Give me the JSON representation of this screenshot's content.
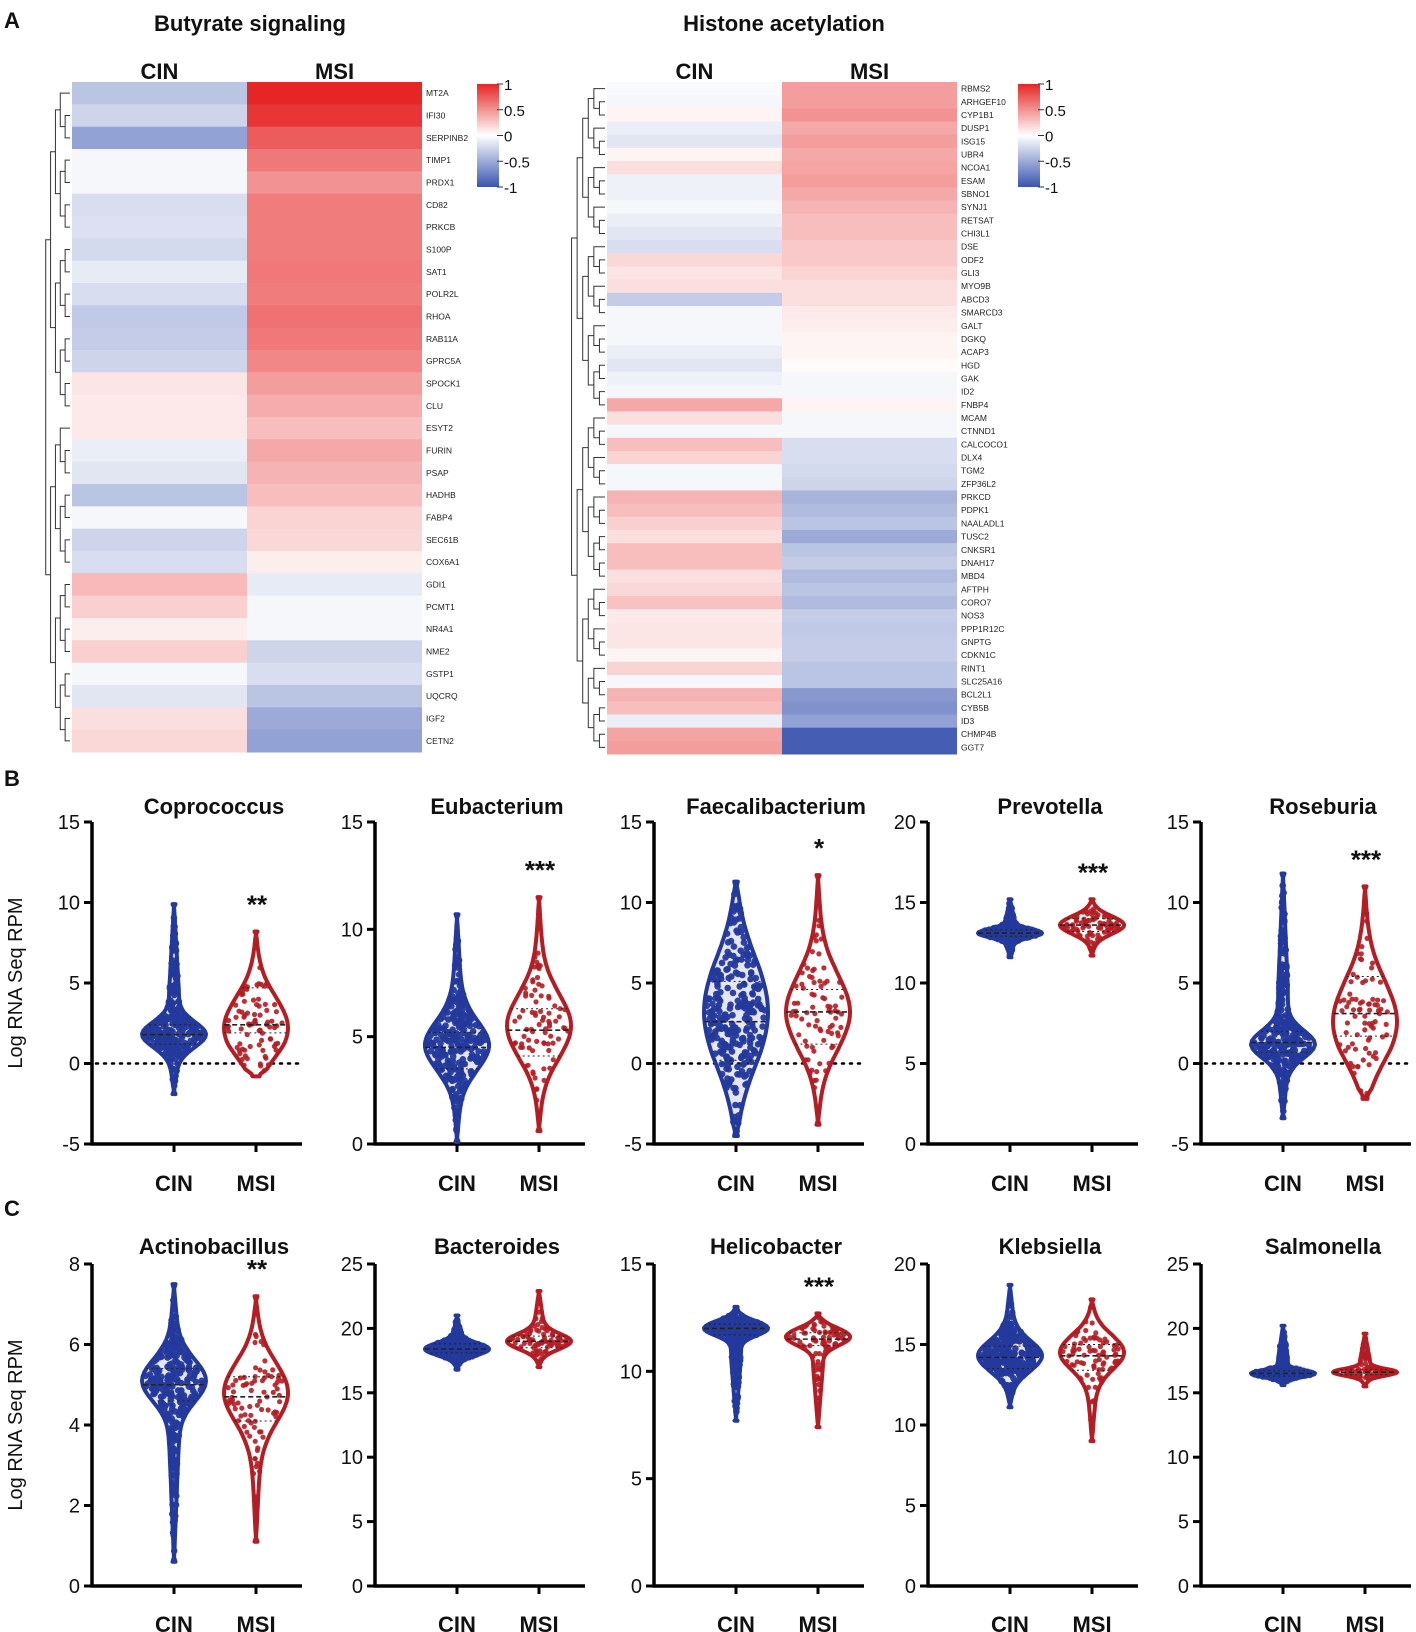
{
  "panels": {
    "a_label": "A",
    "b_label": "B",
    "c_label": "C"
  },
  "colors": {
    "cin": "#24399c",
    "msi": "#b31d24",
    "heat_high": "#e62525",
    "heat_mid": "#ffffff",
    "heat_low": "#3b55b0"
  },
  "chart_data": [
    {
      "id": "butyrate",
      "type": "heatmap",
      "title": "Butyrate signaling",
      "columns": [
        "CIN",
        "MSI"
      ],
      "colorbar_ticks": [
        "1",
        "0.5",
        "0",
        "-0.5",
        "-1"
      ],
      "rows": [
        {
          "gene": "MT2A",
          "cin": -0.35,
          "msi": 1.0
        },
        {
          "gene": "IFI30",
          "cin": -0.25,
          "msi": 0.92
        },
        {
          "gene": "SERPINB2",
          "cin": -0.55,
          "msi": 0.75
        },
        {
          "gene": "TIMP1",
          "cin": -0.05,
          "msi": 0.62
        },
        {
          "gene": "PRDX1",
          "cin": -0.05,
          "msi": 0.5
        },
        {
          "gene": "CD82",
          "cin": -0.2,
          "msi": 0.6
        },
        {
          "gene": "PRKCB",
          "cin": -0.18,
          "msi": 0.6
        },
        {
          "gene": "S100P",
          "cin": -0.22,
          "msi": 0.6
        },
        {
          "gene": "SAT1",
          "cin": -0.12,
          "msi": 0.62
        },
        {
          "gene": "POLR2L",
          "cin": -0.2,
          "msi": 0.6
        },
        {
          "gene": "RHOA",
          "cin": -0.32,
          "msi": 0.65
        },
        {
          "gene": "RAB11A",
          "cin": -0.3,
          "msi": 0.62
        },
        {
          "gene": "GPRC5A",
          "cin": -0.25,
          "msi": 0.55
        },
        {
          "gene": "SPOCK1",
          "cin": 0.12,
          "msi": 0.45
        },
        {
          "gene": "CLU",
          "cin": 0.1,
          "msi": 0.38
        },
        {
          "gene": "ESYT2",
          "cin": 0.1,
          "msi": 0.3
        },
        {
          "gene": "FURIN",
          "cin": -0.1,
          "msi": 0.4
        },
        {
          "gene": "PSAP",
          "cin": -0.15,
          "msi": 0.35
        },
        {
          "gene": "HADHB",
          "cin": -0.35,
          "msi": 0.3
        },
        {
          "gene": "FABP4",
          "cin": -0.05,
          "msi": 0.2
        },
        {
          "gene": "SEC61B",
          "cin": -0.25,
          "msi": 0.18
        },
        {
          "gene": "COX6A1",
          "cin": -0.2,
          "msi": 0.08
        },
        {
          "gene": "GDI1",
          "cin": 0.32,
          "msi": -0.12
        },
        {
          "gene": "PCMT1",
          "cin": 0.22,
          "msi": -0.05
        },
        {
          "gene": "NR4A1",
          "cin": 0.08,
          "msi": -0.05
        },
        {
          "gene": "NME2",
          "cin": 0.22,
          "msi": -0.25
        },
        {
          "gene": "GSTP1",
          "cin": -0.05,
          "msi": -0.2
        },
        {
          "gene": "UQCRQ",
          "cin": -0.15,
          "msi": -0.35
        },
        {
          "gene": "IGF2",
          "cin": 0.15,
          "msi": -0.5
        },
        {
          "gene": "CETN2",
          "cin": 0.18,
          "msi": -0.55
        }
      ]
    },
    {
      "id": "histone",
      "type": "heatmap",
      "title": "Histone acetylation",
      "columns": [
        "CIN",
        "MSI"
      ],
      "colorbar_ticks": [
        "1",
        "0.5",
        "0",
        "-0.5",
        "-1"
      ],
      "rows": [
        {
          "gene": "RBMS2",
          "cin": -0.03,
          "msi": 0.45
        },
        {
          "gene": "ARHGEF10",
          "cin": -0.05,
          "msi": 0.45
        },
        {
          "gene": "CYP1B1",
          "cin": 0.05,
          "msi": 0.5
        },
        {
          "gene": "DUSP1",
          "cin": -0.1,
          "msi": 0.4
        },
        {
          "gene": "ISG15",
          "cin": -0.15,
          "msi": 0.45
        },
        {
          "gene": "UBR4",
          "cin": 0.05,
          "msi": 0.4
        },
        {
          "gene": "NCOA1",
          "cin": 0.15,
          "msi": 0.42
        },
        {
          "gene": "ESAM",
          "cin": -0.08,
          "msi": 0.45
        },
        {
          "gene": "SBNO1",
          "cin": -0.08,
          "msi": 0.4
        },
        {
          "gene": "SYNJ1",
          "cin": -0.05,
          "msi": 0.35
        },
        {
          "gene": "RETSAT",
          "cin": -0.1,
          "msi": 0.3
        },
        {
          "gene": "CHI3L1",
          "cin": -0.15,
          "msi": 0.3
        },
        {
          "gene": "DSE",
          "cin": -0.2,
          "msi": 0.25
        },
        {
          "gene": "ODF2",
          "cin": 0.18,
          "msi": 0.25
        },
        {
          "gene": "GLI3",
          "cin": 0.12,
          "msi": 0.2
        },
        {
          "gene": "MYO9B",
          "cin": 0.15,
          "msi": 0.15
        },
        {
          "gene": "ABCD3",
          "cin": -0.3,
          "msi": 0.15
        },
        {
          "gene": "SMARCD3",
          "cin": -0.05,
          "msi": 0.1
        },
        {
          "gene": "GALT",
          "cin": -0.05,
          "msi": 0.08
        },
        {
          "gene": "DGKQ",
          "cin": -0.05,
          "msi": 0.05
        },
        {
          "gene": "ACAP3",
          "cin": -0.1,
          "msi": 0.05
        },
        {
          "gene": "HGD",
          "cin": -0.15,
          "msi": 0.02
        },
        {
          "gene": "GAK",
          "cin": -0.08,
          "msi": -0.05
        },
        {
          "gene": "ID2",
          "cin": -0.05,
          "msi": -0.05
        },
        {
          "gene": "FNBP4",
          "cin": 0.4,
          "msi": 0.05
        },
        {
          "gene": "MCAM",
          "cin": 0.15,
          "msi": -0.05
        },
        {
          "gene": "CTNND1",
          "cin": -0.05,
          "msi": -0.05
        },
        {
          "gene": "CALCOCO1",
          "cin": 0.3,
          "msi": -0.2
        },
        {
          "gene": "DLX4",
          "cin": 0.2,
          "msi": -0.2
        },
        {
          "gene": "TGM2",
          "cin": -0.05,
          "msi": -0.22
        },
        {
          "gene": "ZFP36L2",
          "cin": -0.05,
          "msi": -0.25
        },
        {
          "gene": "PRKCD",
          "cin": 0.35,
          "msi": -0.45
        },
        {
          "gene": "PDPK1",
          "cin": 0.3,
          "msi": -0.4
        },
        {
          "gene": "NAALADL1",
          "cin": 0.22,
          "msi": -0.35
        },
        {
          "gene": "TUSC2",
          "cin": 0.15,
          "msi": -0.5
        },
        {
          "gene": "CNKSR1",
          "cin": 0.3,
          "msi": -0.35
        },
        {
          "gene": "DNAH17",
          "cin": 0.3,
          "msi": -0.3
        },
        {
          "gene": "MBD4",
          "cin": 0.15,
          "msi": -0.4
        },
        {
          "gene": "AFTPH",
          "cin": 0.18,
          "msi": -0.35
        },
        {
          "gene": "CORO7",
          "cin": 0.28,
          "msi": -0.4
        },
        {
          "gene": "NOS3",
          "cin": 0.1,
          "msi": -0.3
        },
        {
          "gene": "PPP1R12C",
          "cin": 0.12,
          "msi": -0.32
        },
        {
          "gene": "GNPTG",
          "cin": 0.12,
          "msi": -0.3
        },
        {
          "gene": "CDKN1C",
          "cin": 0.05,
          "msi": -0.3
        },
        {
          "gene": "RINT1",
          "cin": 0.2,
          "msi": -0.35
        },
        {
          "gene": "SLC25A16",
          "cin": -0.05,
          "msi": -0.35
        },
        {
          "gene": "BCL2L1",
          "cin": 0.35,
          "msi": -0.6
        },
        {
          "gene": "CYB5B",
          "cin": 0.3,
          "msi": -0.65
        },
        {
          "gene": "ID3",
          "cin": -0.1,
          "msi": -0.55
        },
        {
          "gene": "CHMP4B",
          "cin": 0.42,
          "msi": -0.95
        },
        {
          "gene": "GGT7",
          "cin": 0.45,
          "msi": -0.95
        }
      ]
    },
    {
      "id": "coprococcus",
      "type": "violin",
      "title": "Coprococcus",
      "ylabel": "Log RNA Seq RPM",
      "ylim": [
        -5,
        15
      ],
      "yticks": [
        -5,
        0,
        5,
        10,
        15
      ],
      "zero_line": true,
      "significance": "**",
      "groups": [
        {
          "name": "CIN",
          "min": -1.9,
          "max": 9.9,
          "median": 1.8,
          "q1": 1.2,
          "q3": 2.4,
          "mode": 1.8
        },
        {
          "name": "MSI",
          "min": -0.8,
          "max": 8.2,
          "median": 2.4,
          "q1": 1.9,
          "q3": 4.7,
          "mode": 2.2
        }
      ]
    },
    {
      "id": "eubacterium",
      "type": "violin",
      "title": "Eubacterium",
      "ylabel": "",
      "ylim": [
        0,
        15
      ],
      "yticks": [
        0,
        5,
        10,
        15
      ],
      "zero_line": false,
      "significance": "***",
      "groups": [
        {
          "name": "CIN",
          "min": 0.1,
          "max": 10.7,
          "median": 4.5,
          "q1": 3.5,
          "q3": 5.2,
          "mode": 4.6
        },
        {
          "name": "MSI",
          "min": 0.6,
          "max": 11.5,
          "median": 5.3,
          "q1": 4.1,
          "q3": 6.3,
          "mode": 5.5
        }
      ]
    },
    {
      "id": "faecalibacterium",
      "type": "violin",
      "title": "Faecalibacterium",
      "ylabel": "",
      "ylim": [
        -5,
        15
      ],
      "yticks": [
        -5,
        0,
        5,
        10,
        15
      ],
      "zero_line": true,
      "significance": "*",
      "groups": [
        {
          "name": "CIN",
          "min": -4.5,
          "max": 11.3,
          "median": 2.6,
          "q1": 0.2,
          "q3": 5.1,
          "mode": 3.2
        },
        {
          "name": "MSI",
          "min": -3.8,
          "max": 11.7,
          "median": 3.2,
          "q1": 1.2,
          "q3": 4.6,
          "mode": 3.2
        }
      ]
    },
    {
      "id": "prevotella",
      "type": "violin",
      "title": "Prevotella",
      "ylabel": "",
      "ylim": [
        0,
        20
      ],
      "yticks": [
        0,
        5,
        10,
        15,
        20
      ],
      "zero_line": false,
      "significance": "***",
      "groups": [
        {
          "name": "CIN",
          "min": 11.6,
          "max": 15.2,
          "median": 13.1,
          "q1": 12.9,
          "q3": 13.3,
          "mode": 13.1
        },
        {
          "name": "MSI",
          "min": 11.7,
          "max": 15.2,
          "median": 13.6,
          "q1": 13.2,
          "q3": 14.0,
          "mode": 13.6
        }
      ]
    },
    {
      "id": "roseburia",
      "type": "violin",
      "title": "Roseburia",
      "ylabel": "",
      "ylim": [
        -5,
        15
      ],
      "yticks": [
        -5,
        0,
        5,
        10,
        15
      ],
      "zero_line": true,
      "significance": "***",
      "groups": [
        {
          "name": "CIN",
          "min": -3.4,
          "max": 11.8,
          "median": 1.3,
          "q1": 0.7,
          "q3": 2.0,
          "mode": 1.2
        },
        {
          "name": "MSI",
          "min": -2.2,
          "max": 11.0,
          "median": 3.1,
          "q1": 1.7,
          "q3": 5.4,
          "mode": 2.6
        }
      ]
    },
    {
      "id": "actinobacillus",
      "type": "violin",
      "title": "Actinobacillus",
      "ylabel": "Log RNA Seq RPM",
      "ylim": [
        0,
        8
      ],
      "yticks": [
        0,
        2,
        4,
        6,
        8
      ],
      "zero_line": false,
      "significance": "**",
      "groups": [
        {
          "name": "CIN",
          "min": 0.6,
          "max": 7.5,
          "median": 5.0,
          "q1": 4.6,
          "q3": 5.4,
          "mode": 5.1
        },
        {
          "name": "MSI",
          "min": 1.1,
          "max": 7.2,
          "median": 4.7,
          "q1": 4.1,
          "q3": 5.2,
          "mode": 4.8
        }
      ]
    },
    {
      "id": "bacteroides",
      "type": "violin",
      "title": "Bacteroides",
      "ylabel": "",
      "ylim": [
        0,
        25
      ],
      "yticks": [
        0,
        5,
        10,
        15,
        20,
        25
      ],
      "zero_line": false,
      "significance": "",
      "groups": [
        {
          "name": "CIN",
          "min": 16.8,
          "max": 21.0,
          "median": 18.4,
          "q1": 18.1,
          "q3": 18.8,
          "mode": 18.4
        },
        {
          "name": "MSI",
          "min": 17.0,
          "max": 22.9,
          "median": 19.0,
          "q1": 18.5,
          "q3": 19.4,
          "mode": 19.0
        }
      ]
    },
    {
      "id": "helicobacter",
      "type": "violin",
      "title": "Helicobacter",
      "ylabel": "",
      "ylim": [
        0,
        15
      ],
      "yticks": [
        0,
        5,
        10,
        15
      ],
      "zero_line": false,
      "significance": "***",
      "groups": [
        {
          "name": "CIN",
          "min": 7.7,
          "max": 13.0,
          "median": 12.0,
          "q1": 11.7,
          "q3": 12.2,
          "mode": 12.0
        },
        {
          "name": "MSI",
          "min": 7.4,
          "max": 12.7,
          "median": 11.5,
          "q1": 11.2,
          "q3": 11.8,
          "mode": 11.6
        }
      ]
    },
    {
      "id": "klebsiella",
      "type": "violin",
      "title": "Klebsiella",
      "ylabel": "",
      "ylim": [
        0,
        20
      ],
      "yticks": [
        0,
        5,
        10,
        15,
        20
      ],
      "zero_line": false,
      "significance": "",
      "groups": [
        {
          "name": "CIN",
          "min": 11.1,
          "max": 18.7,
          "median": 14.2,
          "q1": 13.5,
          "q3": 14.9,
          "mode": 14.3
        },
        {
          "name": "MSI",
          "min": 9.0,
          "max": 17.8,
          "median": 14.3,
          "q1": 13.4,
          "q3": 15.0,
          "mode": 14.5
        }
      ]
    },
    {
      "id": "salmonella",
      "type": "violin",
      "title": "Salmonella",
      "ylabel": "",
      "ylim": [
        0,
        25
      ],
      "yticks": [
        0,
        5,
        10,
        15,
        20,
        25
      ],
      "zero_line": false,
      "significance": "",
      "groups": [
        {
          "name": "CIN",
          "min": 15.6,
          "max": 20.2,
          "median": 16.5,
          "q1": 16.3,
          "q3": 16.7,
          "mode": 16.5
        },
        {
          "name": "MSI",
          "min": 15.5,
          "max": 19.6,
          "median": 16.6,
          "q1": 16.4,
          "q3": 16.8,
          "mode": 16.6
        }
      ]
    }
  ]
}
